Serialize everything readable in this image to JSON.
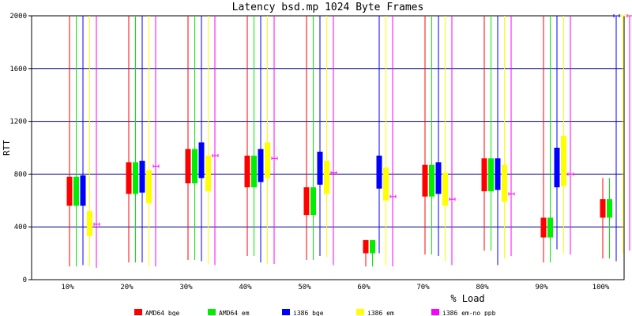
{
  "chart_data": {
    "type": "box",
    "title": "Latency bsd.mp 1024 Byte Frames",
    "xlabel": "% Load",
    "ylabel": "RTT",
    "ylim": [
      0,
      2000
    ],
    "yticks": [
      "0",
      "400",
      "800",
      "1200",
      "1600",
      "2000"
    ],
    "categories": [
      "10%",
      "20%",
      "30%",
      "40%",
      "50%",
      "60%",
      "70%",
      "80%",
      "90%",
      "100%"
    ],
    "grid": "horizontal",
    "legend_position": "bottom",
    "series": [
      {
        "name": "AMD64 bge",
        "color": "#ff0000",
        "boxes": [
          {
            "low": 100,
            "q1": 560,
            "q3": 780,
            "high": 2000
          },
          {
            "low": 130,
            "q1": 650,
            "q3": 890,
            "high": 2000
          },
          {
            "low": 150,
            "q1": 730,
            "q3": 990,
            "high": 2000
          },
          {
            "low": 180,
            "q1": 700,
            "q3": 940,
            "high": 2000
          },
          {
            "low": 150,
            "q1": 490,
            "q3": 700,
            "high": 2000
          },
          {
            "low": 100,
            "q1": 200,
            "q3": 300,
            "high": 300
          },
          {
            "low": 190,
            "q1": 630,
            "q3": 870,
            "high": 2000
          },
          {
            "low": 220,
            "q1": 670,
            "q3": 920,
            "high": 2000
          },
          {
            "low": 130,
            "q1": 320,
            "q3": 470,
            "high": 2000
          },
          {
            "low": 160,
            "q1": 470,
            "q3": 610,
            "high": 770
          }
        ]
      },
      {
        "name": "AMD64 em",
        "color": "#00ee00",
        "boxes": [
          {
            "low": 100,
            "q1": 560,
            "q3": 780,
            "high": 2000
          },
          {
            "low": 130,
            "q1": 650,
            "q3": 890,
            "high": 2000
          },
          {
            "low": 150,
            "q1": 730,
            "q3": 990,
            "high": 2000
          },
          {
            "low": 180,
            "q1": 700,
            "q3": 940,
            "high": 2000
          },
          {
            "low": 150,
            "q1": 490,
            "q3": 700,
            "high": 2000
          },
          {
            "low": 100,
            "q1": 200,
            "q3": 300,
            "high": 300
          },
          {
            "low": 190,
            "q1": 630,
            "q3": 870,
            "high": 2000
          },
          {
            "low": 220,
            "q1": 670,
            "q3": 920,
            "high": 2000
          },
          {
            "low": 130,
            "q1": 320,
            "q3": 470,
            "high": 2000
          },
          {
            "low": 160,
            "q1": 470,
            "q3": 610,
            "high": 770
          }
        ]
      },
      {
        "name": "i386 bge",
        "color": "#0000ff",
        "boxes": [
          {
            "low": 110,
            "q1": 560,
            "q3": 790,
            "high": 2000
          },
          {
            "low": 130,
            "q1": 660,
            "q3": 900,
            "high": 2000
          },
          {
            "low": 140,
            "q1": 770,
            "q3": 1040,
            "high": 2000
          },
          {
            "low": 130,
            "q1": 740,
            "q3": 990,
            "high": 2000
          },
          {
            "low": 180,
            "q1": 720,
            "q3": 970,
            "high": 2000
          },
          {
            "low": 200,
            "q1": 690,
            "q3": 940,
            "high": 2000
          },
          {
            "low": 180,
            "q1": 650,
            "q3": 890,
            "high": 2000
          },
          {
            "low": 110,
            "q1": 680,
            "q3": 920,
            "high": 2000
          },
          {
            "low": 230,
            "q1": 700,
            "q3": 1000,
            "high": 2000
          },
          {
            "low": 140,
            "q1": 2000,
            "q3": 2000,
            "high": 2000
          }
        ]
      },
      {
        "name": "i386 em",
        "color": "#ffff00",
        "boxes": [
          {
            "low": 100,
            "q1": 330,
            "q3": 520,
            "high": 2000
          },
          {
            "low": 100,
            "q1": 580,
            "q3": 830,
            "high": 2000
          },
          {
            "low": 120,
            "q1": 670,
            "q3": 940,
            "high": 2000
          },
          {
            "low": 120,
            "q1": 770,
            "q3": 1040,
            "high": 2000
          },
          {
            "low": 170,
            "q1": 650,
            "q3": 900,
            "high": 2000
          },
          {
            "low": 110,
            "q1": 600,
            "q3": 850,
            "high": 2000
          },
          {
            "low": 140,
            "q1": 560,
            "q3": 810,
            "high": 2000
          },
          {
            "low": 160,
            "q1": 590,
            "q3": 870,
            "high": 2000
          },
          {
            "low": 200,
            "q1": 710,
            "q3": 1090,
            "high": 2000
          },
          {
            "low": 200,
            "q1": 2000,
            "q3": 2000,
            "high": 2000
          }
        ]
      },
      {
        "name": "i386 em-no_ppb",
        "color": "#ff00ff",
        "boxes": [
          {
            "low": 90,
            "q1": 420,
            "q3": 420,
            "high": 2000
          },
          {
            "low": 100,
            "q1": 860,
            "q3": 860,
            "high": 2000
          },
          {
            "low": 110,
            "q1": 940,
            "q3": 940,
            "high": 2000
          },
          {
            "low": 120,
            "q1": 920,
            "q3": 920,
            "high": 2000
          },
          {
            "low": 110,
            "q1": 810,
            "q3": 810,
            "high": 2000
          },
          {
            "low": 100,
            "q1": 630,
            "q3": 630,
            "high": 2000
          },
          {
            "low": 110,
            "q1": 610,
            "q3": 610,
            "high": 2000
          },
          {
            "low": 180,
            "q1": 650,
            "q3": 650,
            "high": 2000
          },
          {
            "low": 190,
            "q1": 800,
            "q3": 800,
            "high": 2000
          },
          {
            "low": 220,
            "q1": 2000,
            "q3": 2000,
            "high": 2000
          }
        ]
      }
    ]
  }
}
